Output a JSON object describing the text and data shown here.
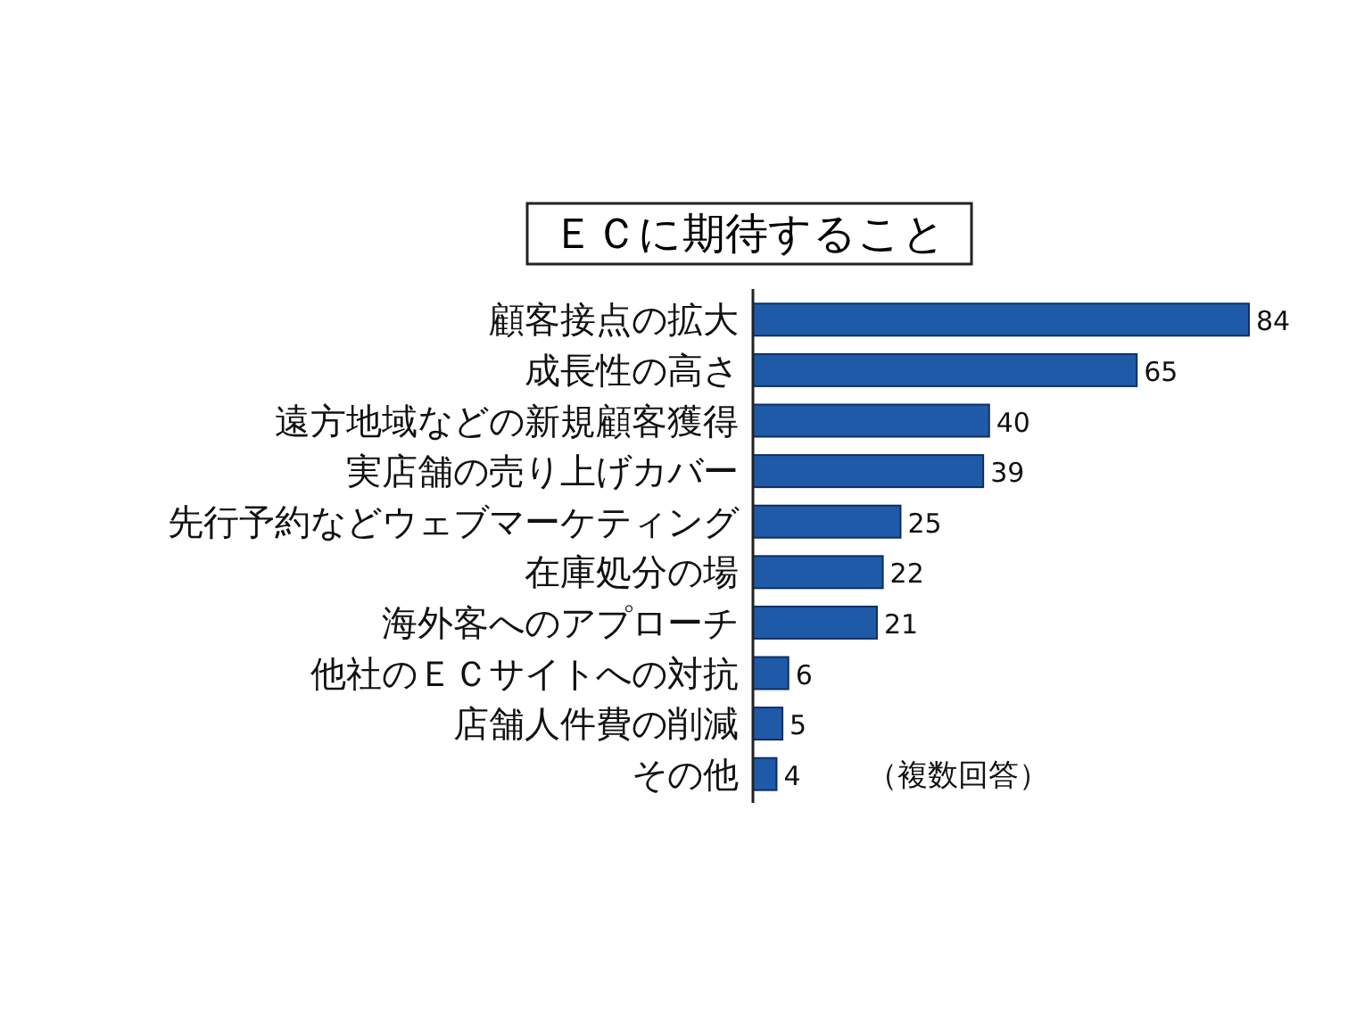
{
  "chart_data": {
    "type": "bar",
    "orientation": "horizontal",
    "title": "ＥＣに期待すること",
    "categories": [
      "顧客接点の拡大",
      "成長性の高さ",
      "遠方地域などの新規顧客獲得",
      "実店舗の売り上げカバー",
      "先行予約などウェブマーケティング",
      "在庫処分の場",
      "海外客へのアプローチ",
      "他社のＥＣサイトへの対抗",
      "店舗人件費の削減",
      "その他"
    ],
    "values": [
      84,
      65,
      40,
      39,
      25,
      22,
      21,
      6,
      5,
      4
    ],
    "color": "#1f5aa8",
    "data_labels": true,
    "annotations": [
      "（複数回答）"
    ]
  }
}
